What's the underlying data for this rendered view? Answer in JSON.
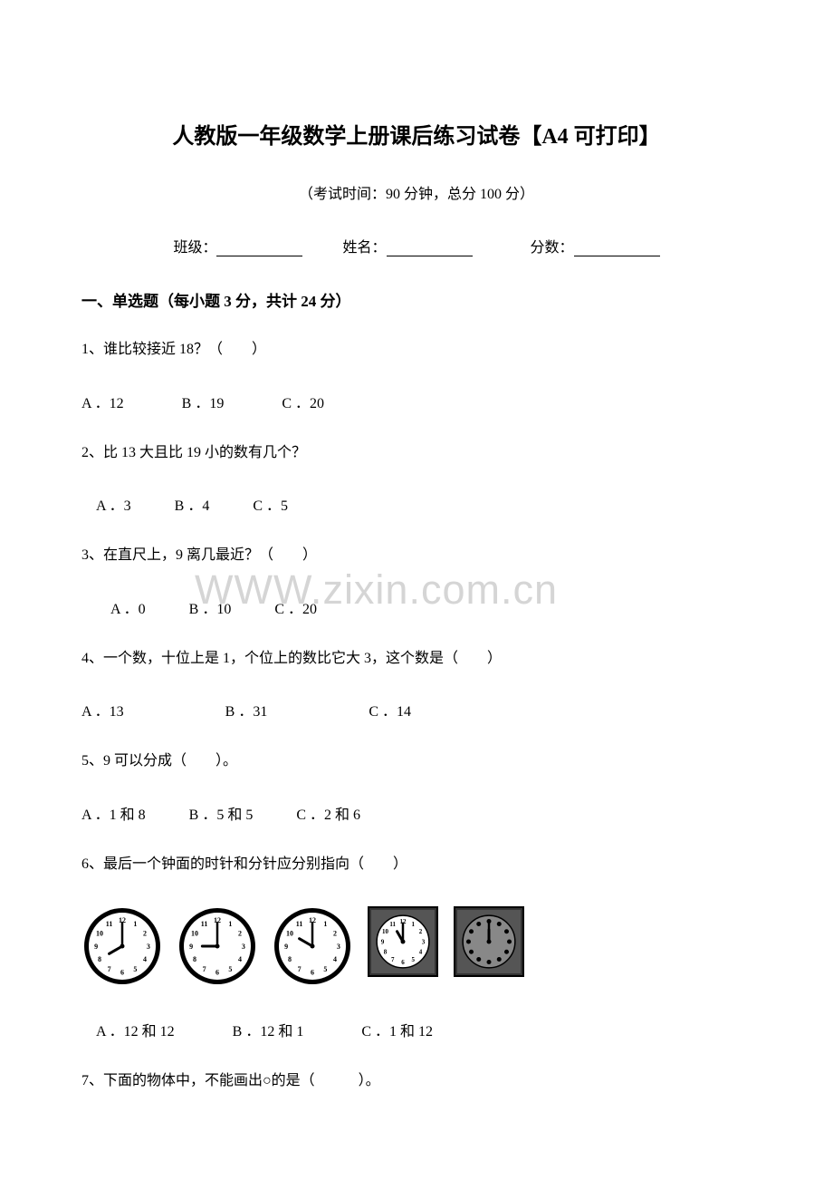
{
  "title": "人教版一年级数学上册课后练习试卷【A4 可打印】",
  "exam_info": "（考试时间：90 分钟，总分 100 分）",
  "student_info": {
    "class_label": "班级：",
    "name_label": "姓名：",
    "score_label": "分数："
  },
  "section1": {
    "header": "一、单选题（每小题 3 分，共计 24 分）",
    "q1": {
      "text": "1、谁比较接近 18？（　　）",
      "options": "A ．12　　　　B ．19　　　　C ．20"
    },
    "q2": {
      "text": "2、比 13 大且比 19 小的数有几个？",
      "options": "　A ．3　　　B ．4　　　C ．5"
    },
    "q3": {
      "text": "3、在直尺上，9 离几最近？（　　）",
      "options": "　　A ．0　　　B ．10　　　C ．20"
    },
    "q4": {
      "text": "4、一个数，十位上是 1，个位上的数比它大 3，这个数是（　　）",
      "options": "A ．13　　　　　　　B ．31　　　　　　　C ．14"
    },
    "q5": {
      "text": "5、9 可以分成（　　）。",
      "options": "A ．1 和 8　　　B ．5 和 5　　　C ．2 和 6"
    },
    "q6": {
      "text": "6、最后一个钟面的时针和分针应分别指向（　　）",
      "options": "　A ．12 和 12　　　　B ．12 和 1　　　　C ．1 和 12"
    },
    "q7": {
      "text": "7、下面的物体中，不能画出○的是（　　　）。"
    }
  },
  "watermark": "WWW.zixin.com.cn",
  "clocks": [
    {
      "hour": 8,
      "minute": 0,
      "type": "round",
      "border_width": 5
    },
    {
      "hour": 9,
      "minute": 0,
      "type": "round",
      "border_width": 5
    },
    {
      "hour": 10,
      "minute": 0,
      "type": "round",
      "border_width": 5
    },
    {
      "hour": 11,
      "minute": 0,
      "type": "square",
      "border_width": 3
    },
    {
      "hour": 12,
      "minute": 0,
      "type": "square_dots",
      "border_width": 3
    }
  ],
  "colors": {
    "text": "#000000",
    "background": "#ffffff",
    "watermark": "rgba(150,150,150,0.4)",
    "clock_stroke": "#000000",
    "clock_fill": "#ffffff",
    "clock_inner_gray": "#888888"
  }
}
